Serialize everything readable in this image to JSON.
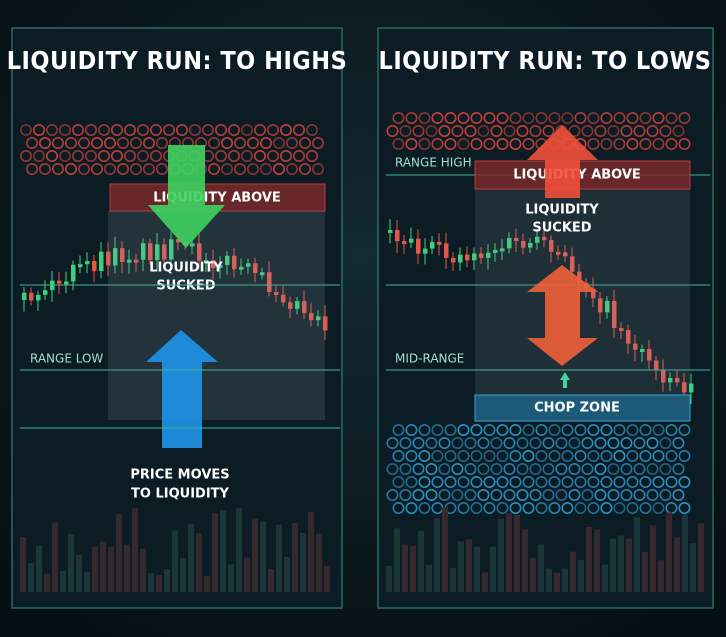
{
  "left": {
    "title": "LIQUIDITY RUN: TO HIGHS",
    "top_box": "LIQUIDITY ABOVE",
    "center_label": [
      "LIQUIDITY",
      "SUCKED"
    ],
    "range_label": "RANGE LOW",
    "bottom_label": [
      "PRICE MOVES",
      "TO LIQUIDITY"
    ]
  },
  "right": {
    "title": "LIQUIDITY RUN: TO LOWS",
    "range_high": "RANGE HIGH",
    "top_box": "LIQUIDITY ABOVE",
    "center_label": [
      "LIQUIDITY",
      "SUCKED"
    ],
    "mid_label": "MID-RANGE",
    "bottom_box": "CHOP ZONE"
  }
}
